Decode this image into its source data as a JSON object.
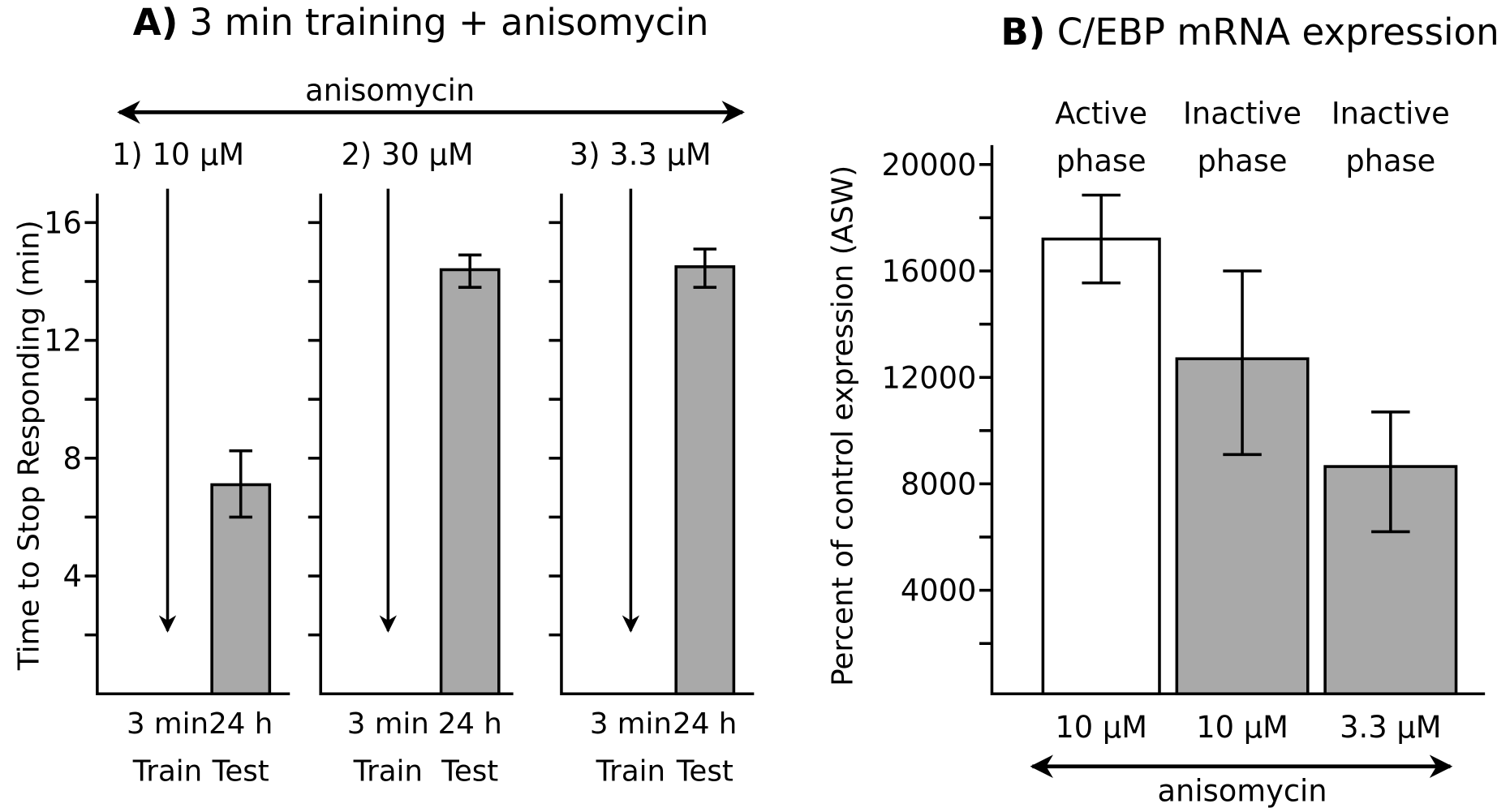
{
  "colors": {
    "bar_gray": "#a9a9a9",
    "bar_white": "#ffffff",
    "ink": "#000000"
  },
  "chart_data": [
    {
      "type": "bar",
      "title_prefix": "A)",
      "title": "3 min training + anisomycin",
      "treatment_label": "anisomycin",
      "ylabel": "Time to Stop Responding (min)",
      "ylim": [
        0,
        17
      ],
      "yticks": [
        4,
        8,
        12,
        16
      ],
      "minor_step": 2,
      "grid": false,
      "panels": [
        {
          "label": "1) 10 µM",
          "categories": [
            {
              "line1": "3 min",
              "line2": "Train"
            },
            {
              "line1": "24 h",
              "line2": "Test"
            }
          ],
          "value": 7.1,
          "error_low": 6.0,
          "error_high": 8.25
        },
        {
          "label": "2) 30 µM",
          "categories": [
            {
              "line1": "3 min",
              "line2": "Train"
            },
            {
              "line1": "24 h",
              "line2": "Test"
            }
          ],
          "value": 14.4,
          "error_low": 13.8,
          "error_high": 14.9
        },
        {
          "label": "3) 3.3 µM",
          "categories": [
            {
              "line1": "3 min",
              "line2": "Train"
            },
            {
              "line1": "24 h",
              "line2": "Test"
            }
          ],
          "value": 14.5,
          "error_low": 13.8,
          "error_high": 15.1
        }
      ]
    },
    {
      "type": "bar",
      "title_prefix": "B)",
      "title": "C/EBP mRNA expression",
      "ylabel": "Percent of control expression (ASW)",
      "treatment_label": "anisomycin",
      "ylim": [
        0,
        20500
      ],
      "yticks": [
        4000,
        8000,
        12000,
        16000,
        20000
      ],
      "minor_step": 2000,
      "grid": false,
      "bars": [
        {
          "header1": "Active",
          "header2": "phase",
          "category": "10 µM",
          "value": 17200,
          "error_low": 15550,
          "error_high": 18850,
          "fill": "white"
        },
        {
          "header1": "Inactive",
          "header2": "phase",
          "category": "10 µM",
          "value": 12700,
          "error_low": 9100,
          "error_high": 16000,
          "fill": "gray"
        },
        {
          "header1": "Inactive",
          "header2": "phase",
          "category": "3.3 µM",
          "value": 8650,
          "error_low": 6200,
          "error_high": 10700,
          "fill": "gray"
        }
      ]
    }
  ]
}
